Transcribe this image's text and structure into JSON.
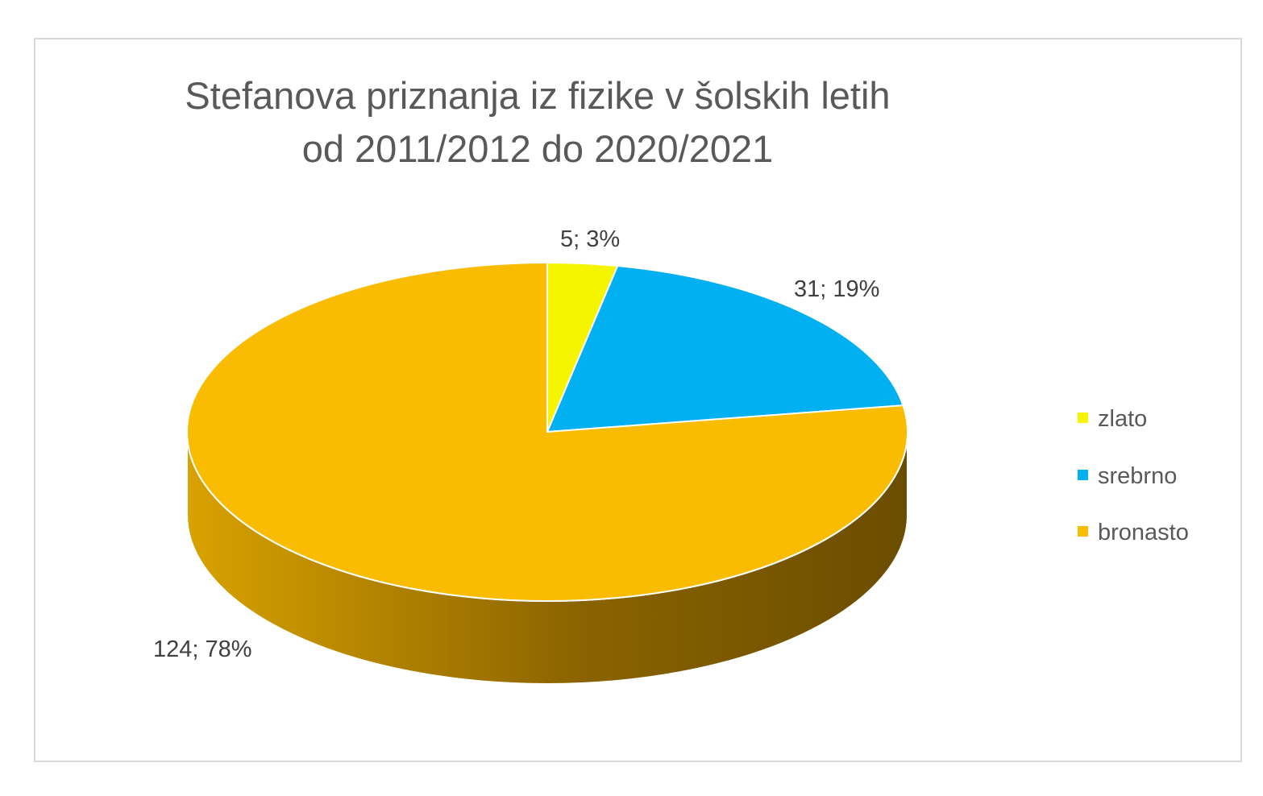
{
  "chart_data": {
    "type": "pie",
    "title_lines": [
      "Stefanova priznanja iz fizike v šolskih letih",
      "od 2011/2012 do 2020/2021"
    ],
    "categories": [
      "zlato",
      "srebrno",
      "bronasto"
    ],
    "values": [
      5,
      31,
      124
    ],
    "data_labels": [
      "5; 3%",
      "31; 19%",
      "124; 78%"
    ],
    "colors": [
      "#f5f500",
      "#00b0f0",
      "#f9bc00"
    ],
    "side_color_dark": "#6b4d00",
    "side_color_light": "#d9a200",
    "legend_position": "right",
    "style": "3d"
  }
}
